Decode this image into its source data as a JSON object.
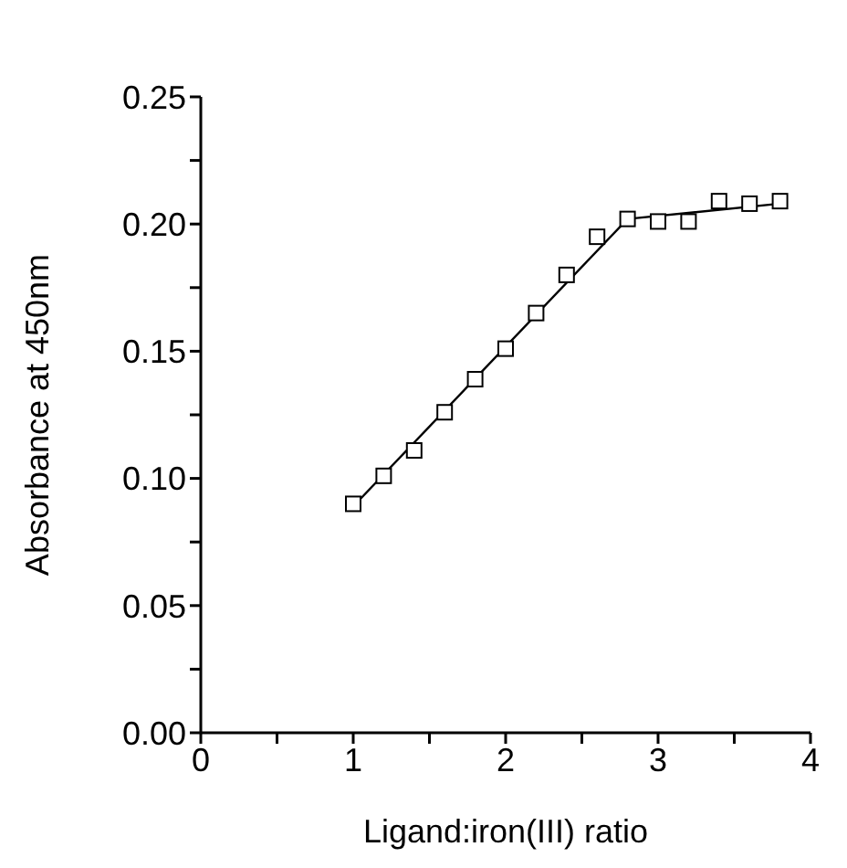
{
  "chart_data": {
    "type": "scatter",
    "xlabel": "Ligand:iron(III) ratio",
    "ylabel": "Absorbance at 450nm",
    "xlim": [
      0,
      4
    ],
    "xticks": [
      0,
      {
        "value": 0.5,
        "label": null
      },
      1,
      {
        "value": 1.5,
        "label": null
      },
      2,
      {
        "value": 2.5,
        "label": null
      },
      3,
      {
        "value": 3.5,
        "label": null
      },
      4
    ],
    "ylim": [
      0,
      0.25
    ],
    "yticks": [
      {
        "value": 0,
        "label": "0.00"
      },
      {
        "value": 0.025,
        "label": null
      },
      0.05,
      {
        "value": 0.075,
        "label": null
      },
      {
        "value": 0.1,
        "label": "0.10"
      },
      {
        "value": 0.125,
        "label": null
      },
      0.15,
      {
        "value": 0.175,
        "label": null
      },
      {
        "value": 0.2,
        "label": "0.20"
      },
      {
        "value": 0.225,
        "label": null
      },
      0.25
    ],
    "grid": false,
    "legend": false,
    "series": [
      {
        "color": "#000000",
        "marker": "square",
        "x": [
          1.0,
          1.2,
          1.4,
          1.6,
          1.8,
          2.0,
          2.2,
          2.4,
          2.6,
          2.8,
          3.0,
          3.2,
          3.4,
          3.6,
          3.8
        ],
        "values": [
          0.09,
          0.101,
          0.111,
          0.126,
          0.139,
          0.151,
          0.165,
          0.18,
          0.195,
          0.202,
          0.201,
          0.201,
          0.209,
          0.208,
          0.209
        ]
      },
      {
        "type": "line",
        "color": "#000000",
        "marker": "none",
        "line_style": "solid",
        "x": [
          1.0,
          2.8,
          3.8
        ],
        "values": [
          0.089,
          0.202,
          0.208
        ]
      }
    ]
  }
}
